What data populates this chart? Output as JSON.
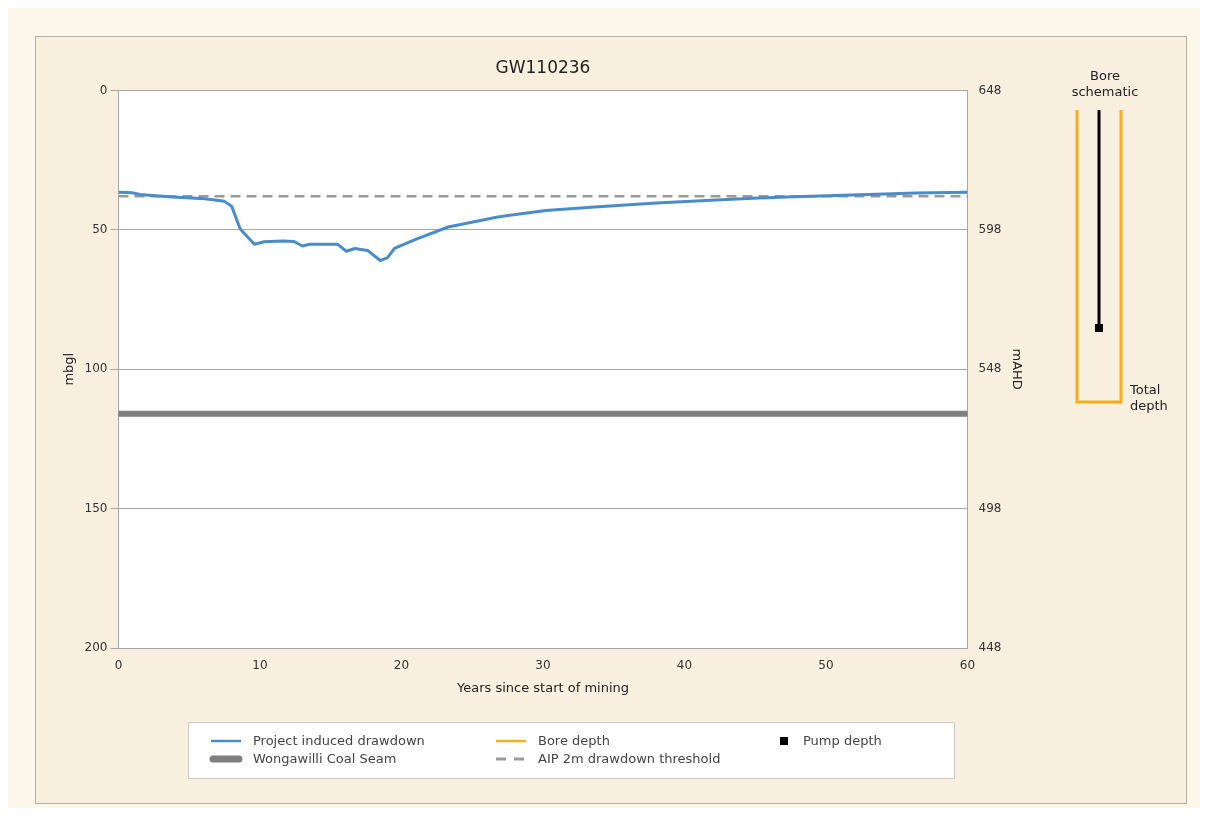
{
  "chart_data": {
    "type": "line",
    "title": "GW110236",
    "xlabel": "Years since start of mining",
    "ylabel": "mbgl",
    "y2label": "mAHD",
    "xlim": [
      0,
      60
    ],
    "xticks": [
      0,
      10,
      20,
      30,
      40,
      50,
      60
    ],
    "ylim": [
      200,
      0
    ],
    "yticks": [
      0,
      50,
      100,
      150,
      200
    ],
    "y2lim": [
      448,
      648
    ],
    "y2ticks": [
      448,
      498,
      548,
      598,
      648
    ],
    "grid": "y",
    "legend": "bottom",
    "marker": "none",
    "annotations": [
      "Bore schematic",
      "Total depth"
    ],
    "series": [
      {
        "name": "Project induced drawdown",
        "color": "#4a8cca",
        "x": [
          0,
          0.96,
          1.5,
          3.8,
          6.1,
          7.5,
          8.0,
          8.6,
          9.6,
          10.3,
          11.6,
          12.4,
          13.0,
          13.5,
          15.5,
          16.1,
          16.7,
          17.6,
          18.5,
          19.0,
          19.5,
          21.0,
          23.3,
          26.8,
          30.2,
          33.4,
          38.0,
          42.6,
          47.2,
          51.8,
          56.4,
          60
        ],
        "values": [
          36.5,
          36.7,
          37.3,
          38.2,
          38.9,
          39.8,
          41.6,
          49.7,
          55.2,
          54.3,
          54.0,
          54.2,
          55.8,
          55.2,
          55.2,
          57.7,
          56.7,
          57.4,
          61.0,
          60.1,
          56.7,
          53.4,
          49.0,
          45.4,
          43.1,
          41.9,
          40.4,
          39.2,
          38.2,
          37.5,
          36.8,
          36.5
        ]
      },
      {
        "name": "Bore depth",
        "color": "#f2b01c"
      },
      {
        "name": "Pump depth",
        "marker": "square",
        "color": "#000000"
      }
    ],
    "ref_lines": [
      {
        "axis": "y",
        "value": 116,
        "label": "Wongawilli Coal Seam",
        "color": "#7f7f7f",
        "line_style": "solid"
      },
      {
        "axis": "y",
        "value": 38,
        "label": "AIP 2m drawdown threshold",
        "color": "#9a9a9a",
        "line_style": "dashed"
      }
    ]
  }
}
